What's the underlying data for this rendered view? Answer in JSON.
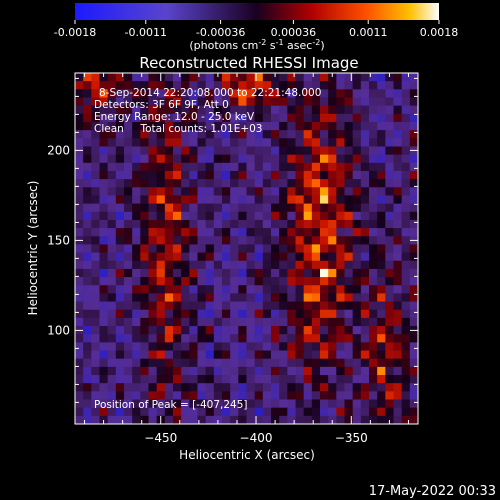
{
  "chart_data": {
    "type": "heatmap",
    "title": "Reconstructed RHESSI Image",
    "colorbar": {
      "ticks": [
        "-0.0018",
        "-0.0011",
        "-0.00036",
        "0.00036",
        "0.0011",
        "0.0018"
      ],
      "range": [
        -0.0018,
        0.0018
      ],
      "unit_label": "(photons cm",
      "unit_exp1": "-2",
      "unit_mid": " s",
      "unit_exp2": "-1",
      "unit_mid2": " asec",
      "unit_exp3": "-2",
      "unit_end": ")"
    },
    "annotations": {
      "line1": "8-Sep-2014 22:20:08.000 to 22:21:48.000",
      "line2": "Detectors: 3F 6F 9F, Att 0",
      "line3": "Energy Range: 12.0 - 25.0 keV",
      "line4": "Clean     Total counts: 1.01E+03",
      "peak": "Position of Peak = [-407,245]"
    },
    "xlabel": "Heliocentric X (arcsec)",
    "ylabel": "Heliocentric Y (arcsec)",
    "xlim": [
      -495,
      -315
    ],
    "ylim": [
      48,
      243
    ],
    "xticks": [
      -450,
      -400,
      -350
    ],
    "xtick_labels": [
      "−450",
      "−400",
      "−350"
    ],
    "yticks": [
      100,
      150,
      200
    ],
    "ytick_labels": [
      "100",
      "150",
      "200"
    ],
    "peak": {
      "x": -407,
      "y": 245
    },
    "footer_date": "17-May-2022 00:33"
  }
}
